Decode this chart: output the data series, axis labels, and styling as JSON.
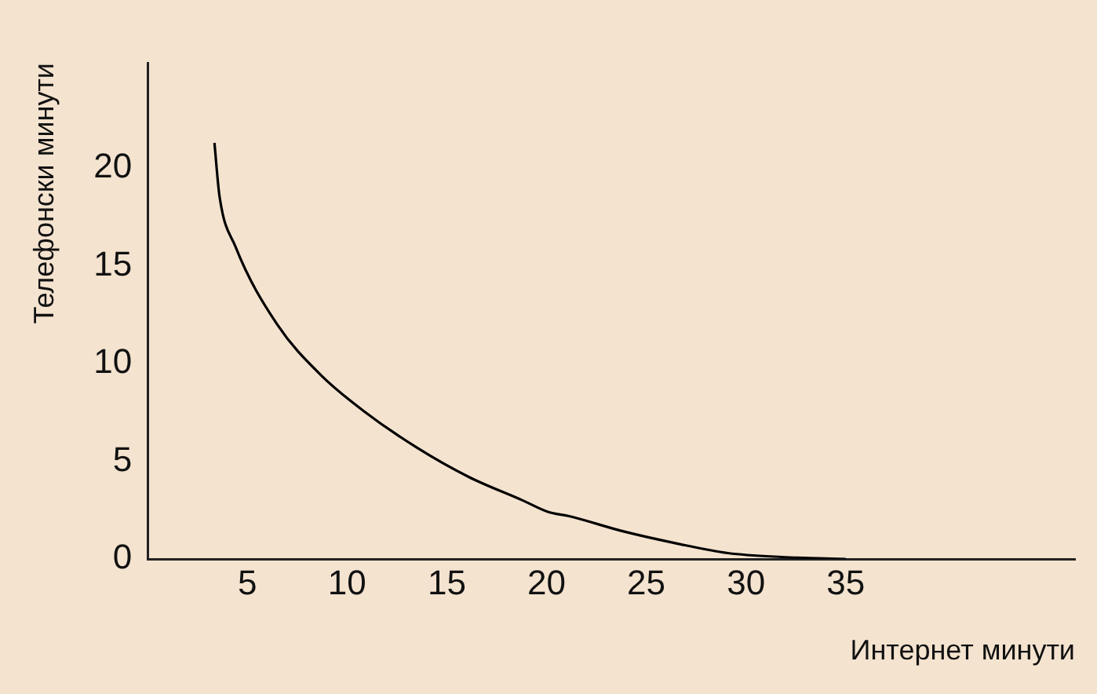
{
  "chart_data": {
    "type": "line",
    "xlabel": "Интернет минути",
    "ylabel": "Телефонски минути",
    "x": [
      3.35,
      3.6,
      4.4,
      6.5,
      8.7,
      10.8,
      13.5,
      16.1,
      18.8,
      20.1,
      21.1,
      23.9,
      26.5,
      29.1,
      31.8,
      35
    ],
    "series": [
      {
        "color": "#000000",
        "values": [
          21.3,
          18.6,
          16.0,
          12.0,
          9.4,
          7.6,
          5.7,
          4.2,
          3.0,
          2.4,
          2.2,
          1.4,
          0.8,
          0.3,
          0.1,
          0
        ]
      }
    ],
    "xlim": [
      0,
      46.5
    ],
    "xticks": [
      5,
      10,
      15,
      20,
      25,
      30,
      35
    ],
    "ylim": [
      0,
      25.4
    ],
    "yticks": [
      0,
      5,
      10,
      15,
      20
    ],
    "grid": false,
    "legend": false,
    "marker": "none",
    "line_style": "solid"
  }
}
